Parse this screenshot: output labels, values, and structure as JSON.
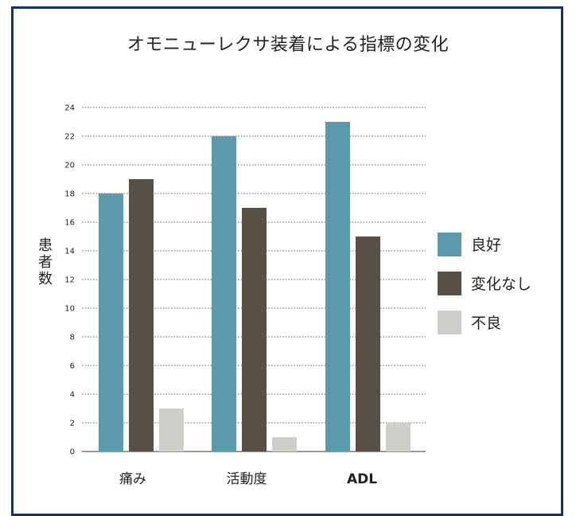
{
  "chart_data": {
    "type": "bar",
    "title": "オモニューレクサ装着による指標の変化",
    "ylabel": "患者数",
    "xlabel": "",
    "categories": [
      "痛み",
      "活動度",
      "ADL"
    ],
    "series": [
      {
        "name": "良好",
        "color": "#5b9aab",
        "values": [
          18,
          22,
          23
        ]
      },
      {
        "name": "変化なし",
        "color": "#565045",
        "values": [
          19,
          17,
          15
        ]
      },
      {
        "name": "不良",
        "color": "#cfcfca",
        "values": [
          3,
          1,
          2
        ]
      }
    ],
    "ylim": [
      0,
      24
    ],
    "yticks": [
      0,
      2,
      4,
      6,
      8,
      10,
      12,
      14,
      16,
      18,
      20,
      22,
      24
    ],
    "grid": true,
    "legend_position": "right"
  }
}
